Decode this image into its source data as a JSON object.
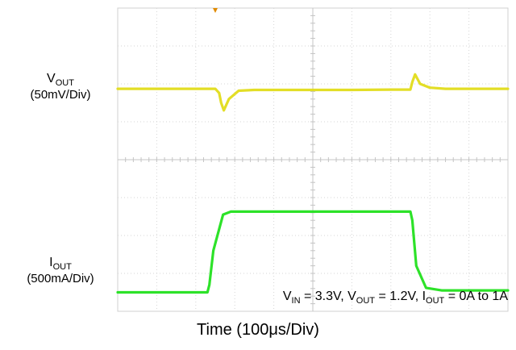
{
  "chart_data": {
    "type": "line",
    "title": "",
    "xlabel": "Time (100μs/Div)",
    "annotation": {
      "parts": [
        "V",
        "IN",
        " = 3.3V, V",
        "OUT",
        " = 1.2V, I",
        "OUT",
        " = 0A to 1A"
      ]
    },
    "x_divisions": 10,
    "y_divisions": 8,
    "grid": true,
    "trigger_marker_div": 2.5,
    "series": [
      {
        "name": "VOUT",
        "label_main": "V",
        "label_sub": "OUT",
        "scale": "(50mV/Div)",
        "color": "#e2dc1a",
        "unit_div": "50mV",
        "x": [
          0,
          2.5,
          2.6,
          2.65,
          2.72,
          2.85,
          3.1,
          3.5,
          6.0,
          7.0,
          7.5,
          7.55,
          7.62,
          7.75,
          8.0,
          8.4,
          10.0
        ],
        "y": [
          5.87,
          5.87,
          5.76,
          5.5,
          5.3,
          5.6,
          5.82,
          5.84,
          5.84,
          5.85,
          5.85,
          6.05,
          6.25,
          6.0,
          5.9,
          5.87,
          5.87
        ]
      },
      {
        "name": "IOUT",
        "label_main": "I",
        "label_sub": "OUT",
        "scale": "(500mA/Div)",
        "color": "#22e01e",
        "unit_div": "500mA",
        "x": [
          0,
          2.3,
          2.35,
          2.45,
          2.7,
          2.9,
          7.5,
          7.55,
          7.65,
          7.9,
          8.3,
          10.0
        ],
        "y": [
          0.5,
          0.5,
          0.7,
          1.6,
          2.55,
          2.63,
          2.63,
          2.4,
          1.2,
          0.62,
          0.55,
          0.55
        ]
      }
    ]
  }
}
